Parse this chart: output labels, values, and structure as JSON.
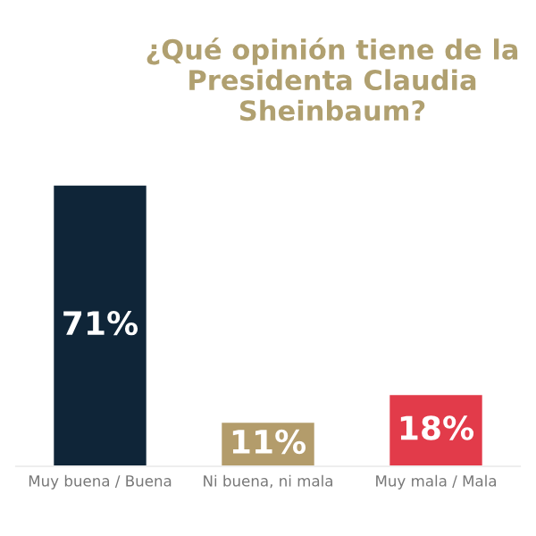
{
  "chart_data": {
    "type": "bar",
    "title": "¿Qué opinión tiene de la Presidenta Claudia Sheinbaum?",
    "categories": [
      "Muy buena / Buena",
      "Ni buena, ni mala",
      "Muy mala / Mala"
    ],
    "values": [
      71,
      11,
      18
    ],
    "colors": [
      "#0f2538",
      "#b39c6b",
      "#e23b4a"
    ],
    "value_labels": [
      "71%",
      "11%",
      "18%"
    ],
    "tick_labels": "x",
    "grid": false,
    "legend": false
  }
}
